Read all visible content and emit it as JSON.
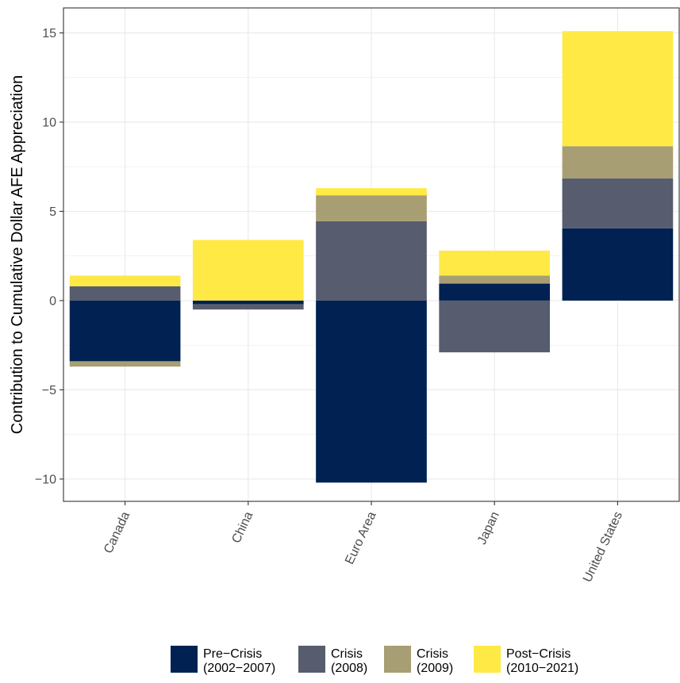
{
  "chart_data": {
    "type": "bar",
    "stacked": true,
    "title": "",
    "xlabel": "",
    "ylabel": "Contribution to Cumulative Dollar AFE Appreciation",
    "ylim": [
      -11.25,
      16.4
    ],
    "yticks": [
      -10,
      -5,
      0,
      5,
      10,
      15
    ],
    "ytick_labels": [
      "−10",
      "−5",
      "0",
      "5",
      "10",
      "15"
    ],
    "categories": [
      "Canada",
      "China",
      "Euro Area",
      "Japan",
      "United States"
    ],
    "grid": true,
    "legend_position": "bottom",
    "series": [
      {
        "name": "Pre−Crisis\n(2002−2007)",
        "color": "#002152",
        "values": [
          -3.4,
          -0.2,
          -10.2,
          0.95,
          4.05
        ]
      },
      {
        "name": "Crisis\n(2008)",
        "color": "#575d6e",
        "values": [
          0.8,
          -0.3,
          4.45,
          -2.9,
          2.8
        ]
      },
      {
        "name": "Crisis\n(2009)",
        "color": "#a79e73",
        "values": [
          -0.3,
          0.0,
          1.45,
          0.45,
          1.8
        ]
      },
      {
        "name": "Post−Crisis\n(2010−2021)",
        "color": "#ffe945",
        "values": [
          0.6,
          3.4,
          0.4,
          1.4,
          6.45
        ]
      }
    ]
  }
}
